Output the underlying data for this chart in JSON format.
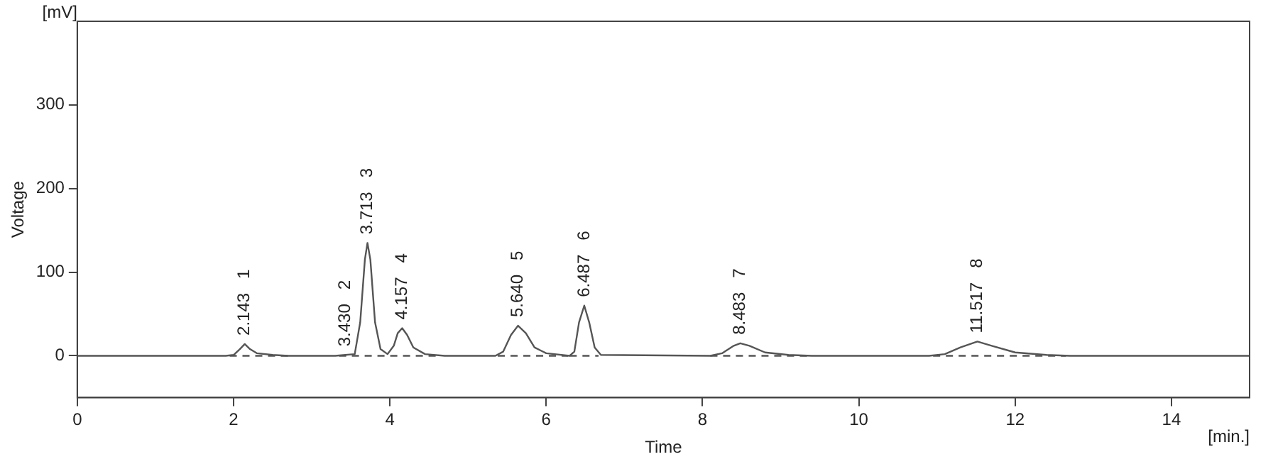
{
  "chart_data": {
    "type": "line",
    "xlabel": "Time",
    "ylabel": "Voltage",
    "xlim": [
      0,
      15
    ],
    "xticks": [
      0,
      2,
      4,
      6,
      8,
      10,
      12,
      14
    ],
    "ylim": [
      -50,
      400
    ],
    "yticks": [
      0,
      100,
      200,
      300
    ],
    "grid": false,
    "legend": false,
    "marker": "none",
    "series": [
      {
        "color": "#555555",
        "line_style": "solid",
        "x": [
          0,
          1.9,
          2.0,
          2.08,
          2.143,
          2.21,
          2.3,
          2.5,
          2.7,
          3.3,
          3.43,
          3.55,
          3.62,
          3.68,
          3.713,
          3.75,
          3.81,
          3.88,
          3.97,
          4.05,
          4.1,
          4.157,
          4.22,
          4.3,
          4.45,
          4.7,
          5.35,
          5.45,
          5.55,
          5.64,
          5.74,
          5.85,
          6.0,
          6.3,
          6.36,
          6.42,
          6.487,
          6.55,
          6.62,
          6.7,
          8.1,
          8.25,
          8.4,
          8.483,
          8.6,
          8.8,
          9.1,
          9.4,
          10.9,
          11.1,
          11.3,
          11.517,
          11.7,
          12.0,
          12.4,
          12.7,
          15
        ],
        "values": [
          0,
          0,
          1,
          8,
          14,
          8,
          3,
          1,
          0,
          0,
          1,
          2,
          40,
          115,
          135,
          115,
          40,
          8,
          2,
          12,
          27,
          33,
          25,
          10,
          2,
          0,
          0,
          5,
          25,
          36,
          27,
          10,
          3,
          0,
          5,
          40,
          60,
          40,
          10,
          1,
          0,
          3,
          12,
          15,
          12,
          4,
          1,
          0,
          0,
          2,
          10,
          17,
          12,
          4,
          1,
          0,
          0
        ]
      },
      {
        "color": "#555555",
        "line_style": "dashed",
        "x": [
          1.95,
          2.72,
          2.8,
          3.35,
          4.65,
          4.8,
          5.38,
          6.28,
          6.29,
          6.3,
          6.67,
          7,
          8.1,
          9.4,
          10,
          10.95,
          12.65
        ],
        "values": [
          0,
          0,
          null,
          0,
          0,
          null,
          0,
          0,
          null,
          0,
          0,
          null,
          0,
          0,
          null,
          0,
          0
        ]
      }
    ],
    "annotations": [
      "[mV]",
      "[min.]",
      {
        "text": "2.143   1",
        "x": 2.143,
        "y": 14
      },
      {
        "text": "3.430   2",
        "x": 3.43,
        "y": 1
      },
      {
        "text": "3.713   3",
        "x": 3.713,
        "y": 135
      },
      {
        "text": "4.157   4",
        "x": 4.157,
        "y": 33
      },
      {
        "text": "5.640   5",
        "x": 5.64,
        "y": 36
      },
      {
        "text": "6.487   6",
        "x": 6.487,
        "y": 60
      },
      {
        "text": "8.483   7",
        "x": 8.483,
        "y": 15
      },
      {
        "text": "11.517   8",
        "x": 11.517,
        "y": 17
      }
    ]
  }
}
